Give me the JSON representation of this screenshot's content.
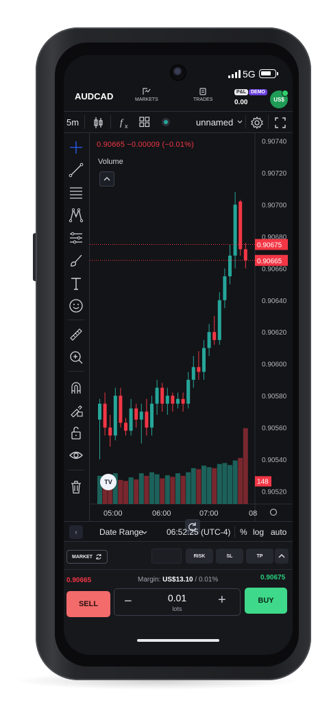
{
  "status_bar": {
    "network": "5G",
    "signal_bars": 4,
    "battery_level": 0.8
  },
  "header": {
    "symbol": "AUDCAD",
    "nav": [
      {
        "label": "MARKETS",
        "icon": "markets-icon"
      },
      {
        "label": "TRADES",
        "icon": "trades-icon"
      }
    ],
    "pl_label": "P&L",
    "demo_badge": "DEMO",
    "pl_value": "0.00",
    "account_label": "US$"
  },
  "toolbar": {
    "interval": "5m",
    "icons": [
      "candles-icon",
      "indicators-icon",
      "templates-icon",
      "status-dot-icon",
      "settings-icon",
      "fullscreen-icon"
    ],
    "layout_name": "unnamed"
  },
  "drawing_tools": [
    "crosshair-icon",
    "trendline-icon",
    "fib-icon",
    "pattern-icon",
    "prediction-icon",
    "brush-icon",
    "text-icon",
    "emoji-icon",
    "ruler-icon",
    "zoom-in-icon",
    "magnet-icon",
    "lock-drawing-icon",
    "unlock-icon",
    "eye-icon",
    "trash-icon"
  ],
  "chart": {
    "legend": "0.90665  −0.00009 (−0.01%)",
    "volume_label": "Volume",
    "price_ticks": [
      "0.90740",
      "0.90720",
      "0.90700",
      "0.90680",
      "0.90660",
      "0.90640",
      "0.90620",
      "0.90600",
      "0.90580",
      "0.90560",
      "0.90540",
      "0.90520"
    ],
    "price_labels": {
      "ask": "0.90675",
      "bid": "0.90665",
      "volume": "148"
    },
    "time_ticks": [
      "05:00",
      "06:00",
      "07:00",
      "08"
    ],
    "logo_text": "TV",
    "colors": {
      "up": "#26a69a",
      "down": "#f23645",
      "background": "#131417"
    }
  },
  "chart_data": {
    "type": "candlestick",
    "title": "",
    "symbol": "AUDCAD",
    "interval": "5m",
    "ylim": [
      0.90512,
      0.90745
    ],
    "xlabel": "",
    "ylabel": "",
    "x_ticks": [
      "05:00",
      "06:00",
      "07:00",
      "08"
    ],
    "candles": [
      {
        "o": 0.90565,
        "h": 0.90578,
        "l": 0.9054,
        "c": 0.90575
      },
      {
        "o": 0.90575,
        "h": 0.90582,
        "l": 0.90555,
        "c": 0.9056
      },
      {
        "o": 0.9056,
        "h": 0.90568,
        "l": 0.90548,
        "c": 0.90555
      },
      {
        "o": 0.90555,
        "h": 0.90585,
        "l": 0.90552,
        "c": 0.9058
      },
      {
        "o": 0.9058,
        "h": 0.90585,
        "l": 0.9056,
        "c": 0.90563
      },
      {
        "o": 0.90563,
        "h": 0.90566,
        "l": 0.90555,
        "c": 0.90558
      },
      {
        "o": 0.90558,
        "h": 0.90578,
        "l": 0.90555,
        "c": 0.90572
      },
      {
        "o": 0.90572,
        "h": 0.90575,
        "l": 0.9056,
        "c": 0.90565
      },
      {
        "o": 0.90565,
        "h": 0.90575,
        "l": 0.9055,
        "c": 0.9057
      },
      {
        "o": 0.9057,
        "h": 0.90578,
        "l": 0.90555,
        "c": 0.9056
      },
      {
        "o": 0.9056,
        "h": 0.9058,
        "l": 0.90555,
        "c": 0.90575
      },
      {
        "o": 0.90575,
        "h": 0.9059,
        "l": 0.90568,
        "c": 0.90585
      },
      {
        "o": 0.90585,
        "h": 0.90588,
        "l": 0.9057,
        "c": 0.90575
      },
      {
        "o": 0.90575,
        "h": 0.90585,
        "l": 0.90568,
        "c": 0.9058
      },
      {
        "o": 0.9058,
        "h": 0.90582,
        "l": 0.9057,
        "c": 0.90575
      },
      {
        "o": 0.90575,
        "h": 0.90582,
        "l": 0.90572,
        "c": 0.90578
      },
      {
        "o": 0.90578,
        "h": 0.90582,
        "l": 0.9057,
        "c": 0.90575
      },
      {
        "o": 0.90575,
        "h": 0.90595,
        "l": 0.90572,
        "c": 0.9059
      },
      {
        "o": 0.9059,
        "h": 0.90605,
        "l": 0.90585,
        "c": 0.90598
      },
      {
        "o": 0.90598,
        "h": 0.90608,
        "l": 0.9059,
        "c": 0.90595
      },
      {
        "o": 0.90595,
        "h": 0.90615,
        "l": 0.9059,
        "c": 0.9061
      },
      {
        "o": 0.9061,
        "h": 0.90625,
        "l": 0.90605,
        "c": 0.9062
      },
      {
        "o": 0.9062,
        "h": 0.9063,
        "l": 0.90612,
        "c": 0.90615
      },
      {
        "o": 0.90615,
        "h": 0.90645,
        "l": 0.90612,
        "c": 0.9064
      },
      {
        "o": 0.9064,
        "h": 0.9066,
        "l": 0.90635,
        "c": 0.90655
      },
      {
        "o": 0.90655,
        "h": 0.90675,
        "l": 0.9065,
        "c": 0.90668
      },
      {
        "o": 0.90668,
        "h": 0.90708,
        "l": 0.9066,
        "c": 0.907
      },
      {
        "o": 0.90702,
        "h": 0.90703,
        "l": 0.90668,
        "c": 0.90672
      },
      {
        "o": 0.90672,
        "h": 0.90676,
        "l": 0.9066,
        "c": 0.90665
      }
    ],
    "volume": [
      55,
      42,
      38,
      60,
      47,
      45,
      52,
      48,
      60,
      55,
      62,
      58,
      50,
      56,
      53,
      60,
      55,
      62,
      70,
      68,
      75,
      72,
      70,
      78,
      80,
      76,
      85,
      90,
      148
    ],
    "price_lines": [
      {
        "label": "ask",
        "value": 0.90675
      },
      {
        "label": "bid",
        "value": 0.90665
      }
    ]
  },
  "bottom_bar": {
    "back_label": "‹",
    "date_range": "Date Range",
    "time": "06:52:25 (UTC-4)",
    "percent": "%",
    "log": "log",
    "auto": "auto"
  },
  "trade_panel": {
    "order_type": "MARKET",
    "pills": [
      "RISK",
      "SL",
      "TP"
    ],
    "bid_price": "0.90665",
    "ask_price": "0.90675",
    "margin_label": "Margin:",
    "margin_value": "US$13.10",
    "margin_pct": "/ 0.01%",
    "sell_label": "SELL",
    "buy_label": "BUY",
    "quantity": "0.01",
    "quantity_unit": "lots",
    "minus": "−",
    "plus": "+"
  }
}
